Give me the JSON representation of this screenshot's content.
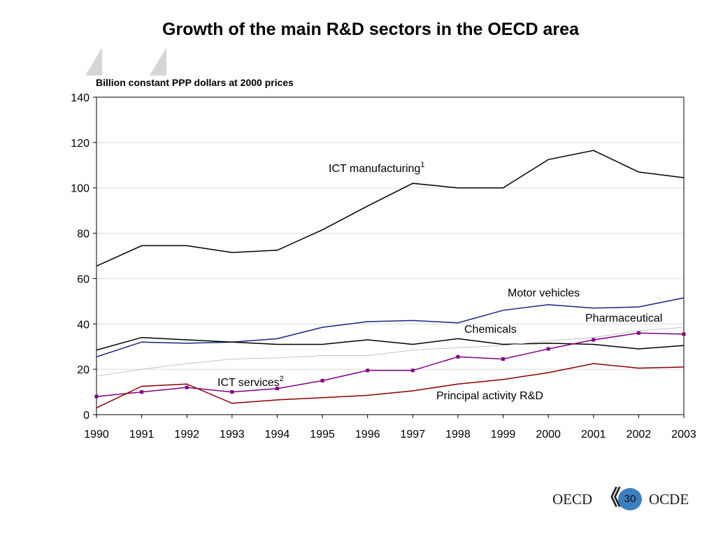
{
  "chart_data": {
    "type": "line",
    "title": "Growth of the main R&D sectors in the OECD area",
    "ylabel": "Billion constant PPP dollars at 2000 prices",
    "xlabel": "",
    "x": [
      "1990",
      "1991",
      "1992",
      "1993",
      "1994",
      "1995",
      "1996",
      "1997",
      "1998",
      "1999",
      "2000",
      "2001",
      "2002",
      "2003"
    ],
    "ylim": [
      0,
      140
    ],
    "yticks": [
      0,
      20,
      40,
      60,
      80,
      100,
      120,
      140
    ],
    "grid": true,
    "series": [
      {
        "name": "ICT manufacturing",
        "superscript": "1",
        "color": "#000000",
        "values": [
          65.5,
          74.5,
          74.5,
          71.5,
          72.5,
          81.5,
          92,
          102,
          100,
          100,
          112.5,
          116.5,
          107,
          104.5
        ]
      },
      {
        "name": "Motor vehicles",
        "color": "#1a237e",
        "values": [
          25.5,
          32,
          31.5,
          32,
          33.5,
          38.5,
          41,
          41.5,
          40.5,
          46,
          48.5,
          47,
          47.5,
          51.5
        ]
      },
      {
        "name": "Chemicals",
        "color": "#000000",
        "values": [
          28.5,
          34,
          33,
          32,
          31,
          31,
          33,
          31,
          33.5,
          31,
          31.5,
          31,
          29,
          30.5
        ]
      },
      {
        "name": "Pharmaceutical",
        "color": "#800080",
        "markers": true,
        "values": [
          8,
          10,
          12,
          10,
          11.5,
          15,
          19.5,
          19.5,
          25.5,
          24.5,
          29,
          33,
          36,
          35.5
        ]
      },
      {
        "name": "ICT services",
        "superscript": "2",
        "color": "#b3b3b3",
        "values": [
          17,
          20,
          22.5,
          24.5,
          25,
          26,
          26,
          28.5,
          29.5,
          30.5,
          32.5,
          34,
          37,
          38.5
        ]
      },
      {
        "name": "Principal activity R&D",
        "color": "#8b0000",
        "values": [
          3,
          12.5,
          13.5,
          5,
          6.5,
          7.5,
          8.5,
          10.5,
          13.5,
          15.5,
          18.5,
          22.5,
          20.5,
          21
        ]
      }
    ]
  },
  "footer": {
    "left_text": "OECD",
    "right_text": "OCDE",
    "page_number": "30"
  }
}
